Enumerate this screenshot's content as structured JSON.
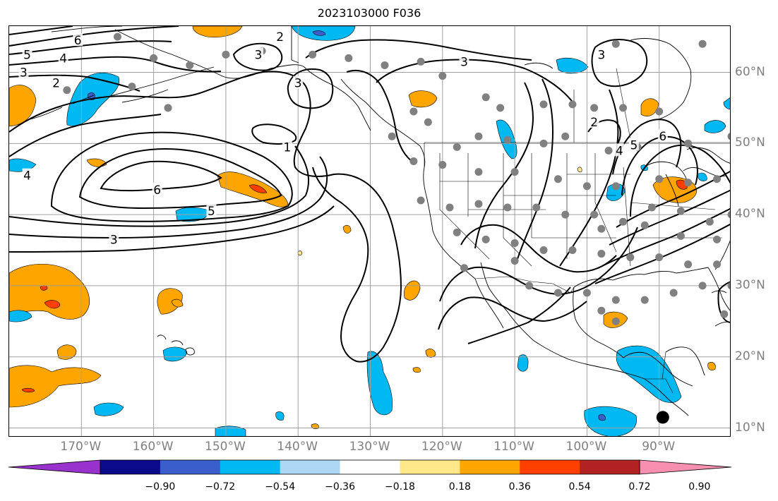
{
  "title": "2023103000 F036",
  "map": {
    "lon_labels": [
      {
        "text": "170°W",
        "lon": -170
      },
      {
        "text": "160°W",
        "lon": -160
      },
      {
        "text": "150°W",
        "lon": -150
      },
      {
        "text": "140°W",
        "lon": -140
      },
      {
        "text": "130°W",
        "lon": -130
      },
      {
        "text": "120°W",
        "lon": -120
      },
      {
        "text": "110°W",
        "lon": -110
      },
      {
        "text": "100°W",
        "lon": -100
      },
      {
        "text": "90°W",
        "lon": -90
      }
    ],
    "lat_labels": [
      {
        "text": "60°N",
        "lat": 60
      },
      {
        "text": "50°N",
        "lat": 50
      },
      {
        "text": "40°N",
        "lat": 40
      },
      {
        "text": "30°N",
        "lat": 30
      },
      {
        "text": "20°N",
        "lat": 20
      },
      {
        "text": "10°N",
        "lat": 10
      }
    ],
    "contour_labels": [
      {
        "text": "6",
        "lon": -170.5,
        "lat": 64.5
      },
      {
        "text": "5",
        "lon": -177.5,
        "lat": 62.5
      },
      {
        "text": "4",
        "lon": -172.5,
        "lat": 62.0
      },
      {
        "text": "3",
        "lon": -178.0,
        "lat": 60.0
      },
      {
        "text": "2",
        "lon": -173.5,
        "lat": 58.5
      },
      {
        "text": "2",
        "lon": -142.5,
        "lat": 65.0
      },
      {
        "text": "3",
        "lon": -145.5,
        "lat": 62.5
      },
      {
        "text": "3",
        "lon": -140.0,
        "lat": 58.5
      },
      {
        "text": "1",
        "lon": -141.5,
        "lat": 49.5
      },
      {
        "text": "4",
        "lon": -177.5,
        "lat": 45.5
      },
      {
        "text": "6",
        "lon": -159.5,
        "lat": 43.5
      },
      {
        "text": "5",
        "lon": -152.0,
        "lat": 40.5
      },
      {
        "text": "3",
        "lon": -165.5,
        "lat": 36.5
      },
      {
        "text": "3",
        "lon": -117.0,
        "lat": 61.5
      },
      {
        "text": "3",
        "lon": -98.0,
        "lat": 62.5
      },
      {
        "text": "2",
        "lon": -99.0,
        "lat": 53.0
      },
      {
        "text": "4",
        "lon": -95.5,
        "lat": 49.0
      },
      {
        "text": "5",
        "lon": -93.5,
        "lat": 49.8
      },
      {
        "text": "6",
        "lon": -89.5,
        "lat": 51.0
      }
    ],
    "station_marker": {
      "lon": -89.5,
      "lat": 11.5
    }
  },
  "colorbar": {
    "min_color": "#9932cc",
    "max_color": "#f78fb0",
    "segments": [
      "#0a0a8a",
      "#3a5fcd",
      "#00b9f2",
      "#add8f5",
      "#ffffff",
      "#ffe88a",
      "#ffa500",
      "#ff3f00",
      "#b22222"
    ],
    "ticks": [
      "−0.90",
      "−0.72",
      "−0.54",
      "−0.36",
      "−0.18",
      "0.18",
      "0.36",
      "0.54",
      "0.72",
      "0.90"
    ]
  },
  "colors": {
    "orange_fill": "#ffa500",
    "red_fill": "#ff3f00",
    "blue_fill": "#00b9f2",
    "dark_blue_fill": "#3a5fcd",
    "light_yellow_fill": "#ffe88a",
    "station_dot": "#808080",
    "contour": "#000000",
    "grid": "#a0a0a0",
    "tick_label": "#808080"
  }
}
